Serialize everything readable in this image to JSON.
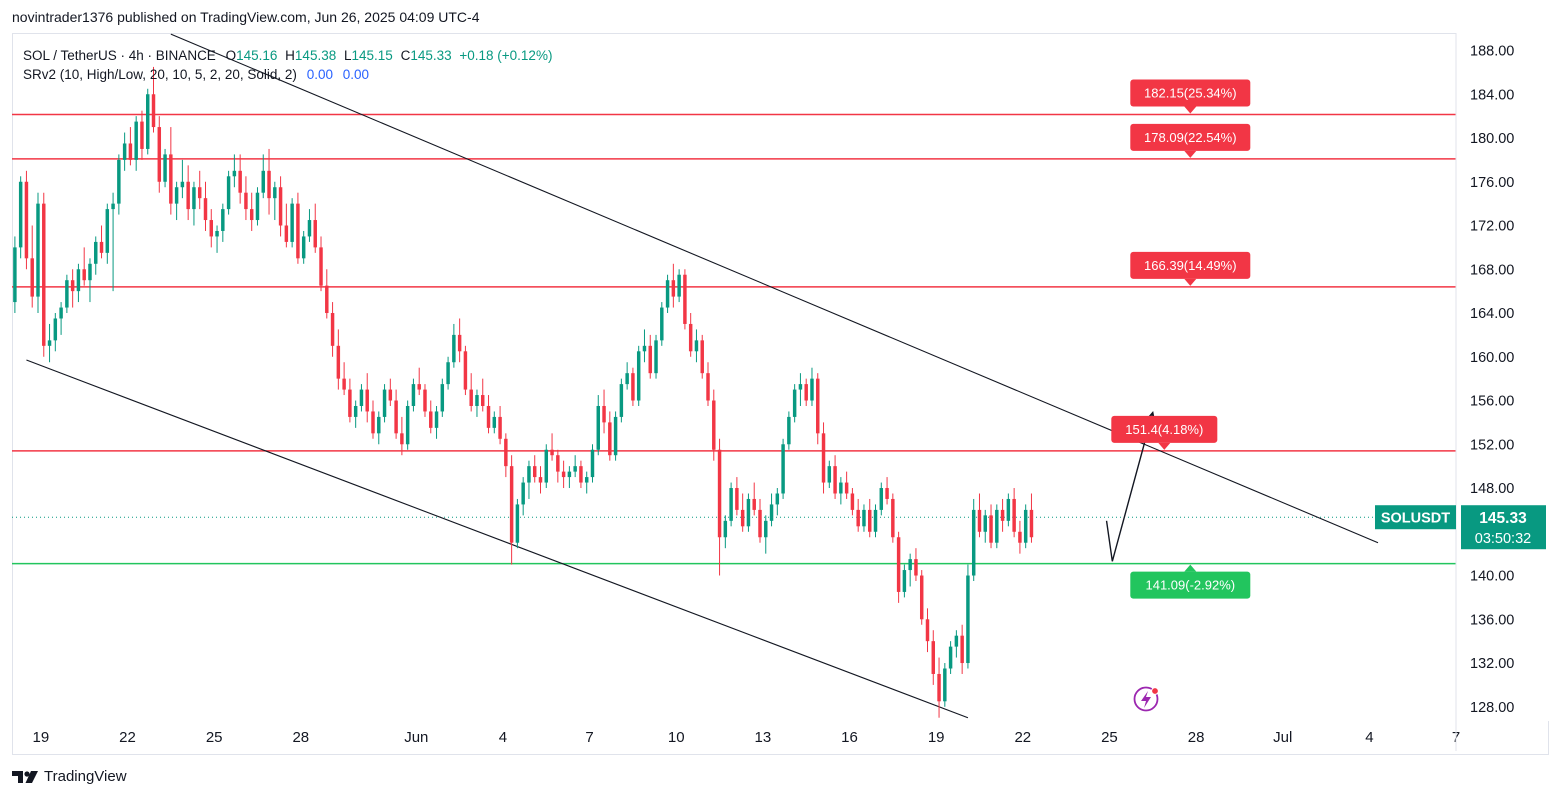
{
  "publisher": "novintrader1376 published on TradingView.com, Jun 26, 2025 04:09 UTC-4",
  "legend": {
    "symbol": "SOL / TetherUS · 4h · BINANCE",
    "o_label": "O",
    "o": "145.16",
    "h_label": "H",
    "h": "145.38",
    "l_label": "L",
    "l": "145.15",
    "c_label": "C",
    "c": "145.33",
    "change": "+0.18 (+0.12%)",
    "indicator": "SRv2 (10, High/Low, 20, 10, 5, 2, 20, Solid, 2)",
    "ind_v1": "0.00",
    "ind_v2": "0.00"
  },
  "footer": {
    "brand": "TradingView"
  },
  "colors": {
    "up": "#089981",
    "down": "#f23645",
    "resistance": "#f23645",
    "support": "#22c55e",
    "price_badge": "#089981"
  },
  "chart_data": {
    "type": "candlestick",
    "symbol": "SOLUSDT",
    "interval": "4h",
    "y_ticks": [
      188,
      184,
      180,
      176,
      172,
      168,
      164,
      160,
      156,
      152,
      148,
      140,
      136,
      132,
      128
    ],
    "y_tick_labels": [
      "188.00",
      "184.00",
      "180.00",
      "176.00",
      "172.00",
      "168.00",
      "164.00",
      "160.00",
      "156.00",
      "152.00",
      "148.00",
      "140.00",
      "136.00",
      "132.00",
      "128.00"
    ],
    "ylim": [
      126.7,
      189.6
    ],
    "x_ticks": [
      {
        "label": "19",
        "day": 19
      },
      {
        "label": "22",
        "day": 22
      },
      {
        "label": "25",
        "day": 25
      },
      {
        "label": "28",
        "day": 28
      },
      {
        "label": "Jun",
        "day": 32
      },
      {
        "label": "4",
        "day": 35
      },
      {
        "label": "7",
        "day": 38
      },
      {
        "label": "10",
        "day": 41
      },
      {
        "label": "13",
        "day": 44
      },
      {
        "label": "16",
        "day": 47
      },
      {
        "label": "19",
        "day": 50
      },
      {
        "label": "22",
        "day": 53
      },
      {
        "label": "25",
        "day": 56
      },
      {
        "label": "28",
        "day": 59
      },
      {
        "label": "Jul",
        "day": 62
      },
      {
        "label": "4",
        "day": 65
      },
      {
        "label": "7",
        "day": 68
      }
    ],
    "xlim_days": [
      18.0,
      68.0
    ],
    "last_price": "145.33",
    "last_price_value": 145.33,
    "countdown": "03:50:32",
    "price_label": "SOLUSDT",
    "resistance_levels": [
      {
        "value": 182.15,
        "label": "182.15(25.34%)"
      },
      {
        "value": 178.09,
        "label": "178.09(22.54%)"
      },
      {
        "value": 166.39,
        "label": "166.39(14.49%)"
      },
      {
        "value": 151.4,
        "label": "151.4(4.18%)"
      }
    ],
    "support_levels": [
      {
        "value": 141.09,
        "label": "141.09(-2.92%)"
      }
    ],
    "channel_upper": [
      [
        23.5,
        189.5
      ],
      [
        65.3,
        143.0
      ]
    ],
    "channel_lower": [
      [
        18.5,
        159.7
      ],
      [
        51.1,
        127.0
      ]
    ],
    "projection": [
      [
        55.9,
        145.0
      ],
      [
        56.1,
        141.3
      ],
      [
        57.5,
        154.9
      ]
    ],
    "candles_ohlc": [
      [
        18.1,
        165.0,
        171.0,
        164.0,
        170.0
      ],
      [
        18.3,
        170.0,
        176.5,
        169.0,
        176.0
      ],
      [
        18.5,
        176.0,
        177.0,
        168.0,
        169.0
      ],
      [
        18.7,
        169.0,
        172.0,
        164.5,
        165.5
      ],
      [
        18.9,
        165.5,
        175.0,
        164.0,
        174.0
      ],
      [
        19.1,
        174.0,
        175.0,
        160.0,
        161.0
      ],
      [
        19.3,
        161.0,
        163.0,
        159.5,
        161.5
      ],
      [
        19.5,
        161.5,
        164.0,
        160.5,
        163.5
      ],
      [
        19.7,
        163.5,
        165.0,
        162.0,
        164.5
      ],
      [
        19.9,
        164.5,
        167.5,
        164.0,
        167.0
      ],
      [
        20.1,
        167.0,
        168.0,
        164.5,
        166.0
      ],
      [
        20.3,
        166.0,
        168.5,
        165.0,
        168.0
      ],
      [
        20.5,
        168.0,
        170.0,
        166.5,
        167.0
      ],
      [
        20.7,
        167.0,
        169.0,
        165.0,
        168.5
      ],
      [
        20.9,
        168.5,
        171.0,
        167.5,
        170.5
      ],
      [
        21.1,
        170.5,
        172.0,
        169.0,
        169.5
      ],
      [
        21.3,
        169.5,
        174.0,
        168.5,
        173.5
      ],
      [
        21.5,
        173.5,
        175.0,
        166.0,
        174.0
      ],
      [
        21.7,
        174.0,
        178.5,
        173.0,
        178.0
      ],
      [
        21.9,
        178.0,
        180.5,
        177.0,
        179.5
      ],
      [
        22.1,
        179.5,
        181.0,
        177.5,
        178.0
      ],
      [
        22.3,
        178.0,
        182.0,
        177.0,
        181.5
      ],
      [
        22.5,
        181.5,
        182.5,
        178.0,
        179.0
      ],
      [
        22.7,
        179.0,
        184.5,
        178.5,
        184.0
      ],
      [
        22.9,
        184.0,
        186.5,
        180.5,
        181.0
      ],
      [
        23.1,
        181.0,
        182.0,
        175.0,
        176.0
      ],
      [
        23.3,
        176.0,
        179.0,
        175.5,
        178.5
      ],
      [
        23.5,
        178.5,
        181.0,
        173.0,
        174.0
      ],
      [
        23.7,
        174.0,
        176.0,
        172.5,
        175.5
      ],
      [
        23.9,
        175.5,
        178.0,
        174.5,
        176.0
      ],
      [
        24.1,
        176.0,
        177.5,
        172.5,
        173.5
      ],
      [
        24.3,
        173.5,
        176.0,
        172.0,
        175.5
      ],
      [
        24.5,
        175.5,
        177.0,
        173.5,
        174.5
      ],
      [
        24.7,
        174.5,
        176.0,
        171.5,
        172.5
      ],
      [
        24.9,
        172.5,
        173.5,
        170.0,
        171.0
      ],
      [
        25.1,
        171.0,
        172.0,
        169.5,
        171.5
      ],
      [
        25.3,
        171.5,
        174.0,
        170.5,
        173.5
      ],
      [
        25.5,
        173.5,
        177.0,
        173.0,
        176.5
      ],
      [
        25.7,
        176.5,
        178.5,
        175.5,
        177.0
      ],
      [
        25.9,
        177.0,
        178.5,
        174.0,
        175.0
      ],
      [
        26.1,
        175.0,
        176.5,
        172.5,
        173.5
      ],
      [
        26.3,
        173.5,
        175.0,
        171.5,
        172.5
      ],
      [
        26.5,
        172.5,
        175.5,
        172.0,
        175.0
      ],
      [
        26.7,
        175.0,
        178.5,
        174.5,
        177.0
      ],
      [
        26.9,
        177.0,
        179.0,
        173.0,
        174.5
      ],
      [
        27.1,
        174.5,
        176.0,
        172.5,
        175.5
      ],
      [
        27.3,
        175.5,
        176.5,
        171.0,
        172.0
      ],
      [
        27.5,
        172.0,
        174.0,
        170.0,
        170.5
      ],
      [
        27.7,
        170.5,
        174.5,
        170.0,
        174.0
      ],
      [
        27.9,
        174.0,
        175.0,
        168.5,
        169.0
      ],
      [
        28.1,
        169.0,
        171.5,
        168.5,
        171.0
      ],
      [
        28.3,
        171.0,
        173.5,
        170.5,
        172.5
      ],
      [
        28.5,
        172.5,
        174.0,
        169.5,
        170.0
      ],
      [
        28.7,
        170.0,
        171.0,
        166.0,
        166.5
      ],
      [
        28.9,
        166.5,
        168.0,
        163.5,
        164.0
      ],
      [
        29.1,
        164.0,
        165.0,
        160.0,
        161.0
      ],
      [
        29.3,
        161.0,
        162.5,
        157.0,
        158.0
      ],
      [
        29.5,
        158.0,
        159.5,
        156.5,
        157.0
      ],
      [
        29.7,
        157.0,
        158.0,
        154.0,
        154.5
      ],
      [
        29.9,
        154.5,
        156.0,
        153.5,
        155.5
      ],
      [
        30.1,
        155.5,
        157.5,
        155.0,
        157.0
      ],
      [
        30.3,
        157.0,
        158.5,
        154.0,
        155.0
      ],
      [
        30.5,
        155.0,
        156.0,
        152.5,
        153.0
      ],
      [
        30.7,
        153.0,
        155.0,
        152.0,
        154.5
      ],
      [
        30.9,
        154.5,
        157.5,
        154.0,
        157.0
      ],
      [
        31.1,
        157.0,
        158.0,
        155.5,
        156.0
      ],
      [
        31.3,
        156.0,
        157.0,
        152.5,
        153.0
      ],
      [
        31.5,
        153.0,
        154.5,
        151.0,
        152.0
      ],
      [
        31.7,
        152.0,
        156.0,
        151.5,
        155.5
      ],
      [
        31.9,
        155.5,
        158.0,
        155.0,
        157.5
      ],
      [
        32.1,
        157.5,
        159.0,
        156.5,
        157.0
      ],
      [
        32.3,
        157.0,
        157.5,
        154.5,
        155.0
      ],
      [
        32.5,
        155.0,
        156.0,
        153.0,
        153.5
      ],
      [
        32.7,
        153.5,
        155.5,
        152.5,
        155.0
      ],
      [
        32.9,
        155.0,
        158.0,
        154.5,
        157.5
      ],
      [
        33.1,
        157.5,
        160.0,
        157.0,
        159.5
      ],
      [
        33.3,
        159.5,
        163.0,
        159.0,
        162.0
      ],
      [
        33.5,
        162.0,
        163.5,
        159.5,
        160.5
      ],
      [
        33.7,
        160.5,
        161.0,
        156.5,
        157.0
      ],
      [
        33.9,
        157.0,
        158.5,
        155.0,
        155.5
      ],
      [
        34.1,
        155.5,
        157.0,
        154.5,
        156.5
      ],
      [
        34.3,
        156.5,
        158.0,
        155.0,
        155.5
      ],
      [
        34.5,
        155.5,
        156.5,
        153.0,
        153.5
      ],
      [
        34.7,
        153.5,
        155.0,
        153.0,
        154.5
      ],
      [
        34.9,
        154.5,
        155.5,
        152.0,
        152.5
      ],
      [
        35.1,
        152.5,
        153.0,
        149.0,
        150.0
      ],
      [
        35.3,
        150.0,
        151.0,
        141.0,
        143.0
      ],
      [
        35.5,
        143.0,
        147.0,
        142.5,
        146.5
      ],
      [
        35.7,
        146.5,
        149.0,
        145.5,
        148.5
      ],
      [
        35.9,
        148.5,
        150.5,
        147.0,
        150.0
      ],
      [
        36.1,
        150.0,
        151.0,
        148.5,
        149.0
      ],
      [
        36.3,
        149.0,
        150.0,
        147.5,
        148.5
      ],
      [
        36.5,
        148.5,
        152.0,
        148.0,
        151.5
      ],
      [
        36.7,
        151.5,
        153.0,
        150.5,
        151.0
      ],
      [
        36.9,
        151.0,
        151.5,
        148.5,
        149.5
      ],
      [
        37.1,
        149.5,
        150.5,
        148.0,
        149.0
      ],
      [
        37.3,
        149.0,
        150.0,
        148.0,
        149.5
      ],
      [
        37.5,
        149.5,
        151.0,
        149.0,
        150.0
      ],
      [
        37.7,
        150.0,
        150.5,
        148.0,
        148.5
      ],
      [
        37.9,
        148.5,
        149.5,
        147.5,
        149.0
      ],
      [
        38.1,
        149.0,
        152.0,
        148.5,
        151.5
      ],
      [
        38.3,
        151.5,
        156.5,
        151.0,
        155.5
      ],
      [
        38.5,
        155.5,
        157.0,
        153.0,
        154.0
      ],
      [
        38.7,
        154.0,
        155.0,
        150.5,
        151.0
      ],
      [
        38.9,
        151.0,
        155.0,
        150.5,
        154.5
      ],
      [
        39.1,
        154.5,
        158.0,
        154.0,
        157.5
      ],
      [
        39.3,
        157.5,
        159.5,
        157.0,
        158.5
      ],
      [
        39.5,
        158.5,
        159.0,
        155.5,
        156.0
      ],
      [
        39.7,
        156.0,
        161.0,
        155.5,
        160.5
      ],
      [
        39.9,
        160.5,
        162.5,
        159.5,
        161.0
      ],
      [
        40.1,
        161.0,
        162.0,
        158.0,
        158.5
      ],
      [
        40.3,
        158.5,
        162.0,
        158.0,
        161.5
      ],
      [
        40.5,
        161.5,
        165.0,
        161.0,
        164.5
      ],
      [
        40.7,
        164.5,
        167.5,
        164.0,
        167.0
      ],
      [
        40.9,
        167.0,
        168.5,
        164.5,
        165.5
      ],
      [
        41.1,
        165.5,
        168.0,
        165.0,
        167.5
      ],
      [
        41.3,
        167.5,
        168.0,
        162.5,
        163.0
      ],
      [
        41.5,
        163.0,
        164.0,
        160.0,
        160.5
      ],
      [
        41.7,
        160.5,
        162.5,
        159.5,
        161.5
      ],
      [
        41.9,
        161.5,
        162.0,
        158.0,
        158.5
      ],
      [
        42.1,
        158.5,
        159.5,
        155.5,
        156.0
      ],
      [
        42.3,
        156.0,
        157.0,
        150.5,
        151.5
      ],
      [
        42.5,
        151.5,
        152.5,
        140.0,
        143.5
      ],
      [
        42.7,
        143.5,
        145.5,
        142.5,
        145.0
      ],
      [
        42.9,
        145.0,
        148.5,
        144.5,
        148.0
      ],
      [
        43.1,
        148.0,
        149.0,
        145.5,
        146.0
      ],
      [
        43.3,
        146.0,
        147.5,
        144.0,
        144.5
      ],
      [
        43.5,
        144.5,
        147.5,
        144.0,
        147.0
      ],
      [
        43.7,
        147.0,
        148.5,
        145.5,
        146.0
      ],
      [
        43.9,
        146.0,
        147.0,
        143.0,
        143.5
      ],
      [
        44.1,
        143.5,
        145.5,
        142.0,
        145.0
      ],
      [
        44.3,
        145.0,
        147.5,
        144.5,
        146.5
      ],
      [
        44.5,
        146.5,
        148.0,
        145.5,
        147.5
      ],
      [
        44.7,
        147.5,
        152.5,
        147.0,
        152.0
      ],
      [
        44.9,
        152.0,
        155.0,
        151.5,
        154.5
      ],
      [
        45.1,
        154.5,
        157.5,
        154.0,
        157.0
      ],
      [
        45.3,
        157.0,
        158.5,
        155.5,
        157.5
      ],
      [
        45.5,
        157.5,
        158.0,
        155.5,
        156.0
      ],
      [
        45.7,
        156.0,
        159.0,
        155.5,
        158.0
      ],
      [
        45.9,
        158.0,
        158.5,
        152.0,
        153.0
      ],
      [
        46.1,
        153.0,
        154.0,
        147.5,
        148.5
      ],
      [
        46.3,
        148.5,
        150.5,
        148.0,
        150.0
      ],
      [
        46.5,
        150.0,
        151.0,
        147.0,
        147.5
      ],
      [
        46.7,
        147.5,
        149.0,
        146.5,
        148.5
      ],
      [
        46.9,
        148.5,
        149.5,
        147.0,
        147.5
      ],
      [
        47.1,
        147.5,
        148.0,
        145.5,
        146.0
      ],
      [
        47.3,
        146.0,
        147.0,
        144.0,
        144.5
      ],
      [
        47.5,
        144.5,
        146.5,
        144.0,
        146.0
      ],
      [
        47.7,
        146.0,
        147.0,
        143.5,
        144.0
      ],
      [
        47.9,
        144.0,
        146.5,
        143.5,
        146.0
      ],
      [
        48.1,
        146.0,
        148.5,
        145.5,
        148.0
      ],
      [
        48.3,
        148.0,
        149.0,
        146.5,
        147.0
      ],
      [
        48.5,
        147.0,
        147.5,
        143.0,
        143.5
      ],
      [
        48.7,
        143.5,
        144.0,
        137.5,
        138.5
      ],
      [
        48.9,
        138.5,
        141.0,
        138.0,
        140.5
      ],
      [
        49.1,
        140.5,
        142.0,
        139.0,
        141.5
      ],
      [
        49.3,
        141.5,
        142.5,
        139.5,
        140.0
      ],
      [
        49.5,
        140.0,
        140.5,
        135.5,
        136.0
      ],
      [
        49.7,
        136.0,
        137.0,
        133.0,
        134.0
      ],
      [
        49.9,
        134.0,
        135.0,
        130.0,
        131.0
      ],
      [
        50.1,
        131.0,
        132.5,
        127.0,
        128.5
      ],
      [
        50.3,
        128.5,
        132.0,
        128.0,
        131.5
      ],
      [
        50.5,
        131.5,
        134.0,
        131.0,
        133.5
      ],
      [
        50.7,
        133.5,
        135.0,
        132.5,
        134.5
      ],
      [
        50.9,
        134.5,
        135.5,
        131.0,
        132.0
      ],
      [
        51.1,
        132.0,
        141.0,
        131.5,
        140.0
      ],
      [
        51.3,
        140.0,
        147.0,
        139.5,
        146.0
      ],
      [
        51.5,
        146.0,
        147.5,
        143.5,
        144.0
      ],
      [
        51.7,
        144.0,
        146.0,
        143.0,
        145.5
      ],
      [
        51.9,
        145.5,
        146.5,
        142.5,
        143.0
      ],
      [
        52.1,
        143.0,
        146.5,
        142.5,
        146.0
      ],
      [
        52.3,
        146.0,
        147.0,
        144.0,
        145.0
      ],
      [
        52.5,
        145.0,
        147.5,
        144.5,
        147.0
      ],
      [
        52.7,
        147.0,
        148.0,
        143.5,
        144.0
      ],
      [
        52.9,
        144.0,
        145.0,
        142.0,
        143.0
      ],
      [
        53.1,
        143.0,
        146.5,
        142.5,
        146.0
      ],
      [
        53.3,
        146.0,
        147.5,
        143.0,
        143.5
      ]
    ]
  }
}
